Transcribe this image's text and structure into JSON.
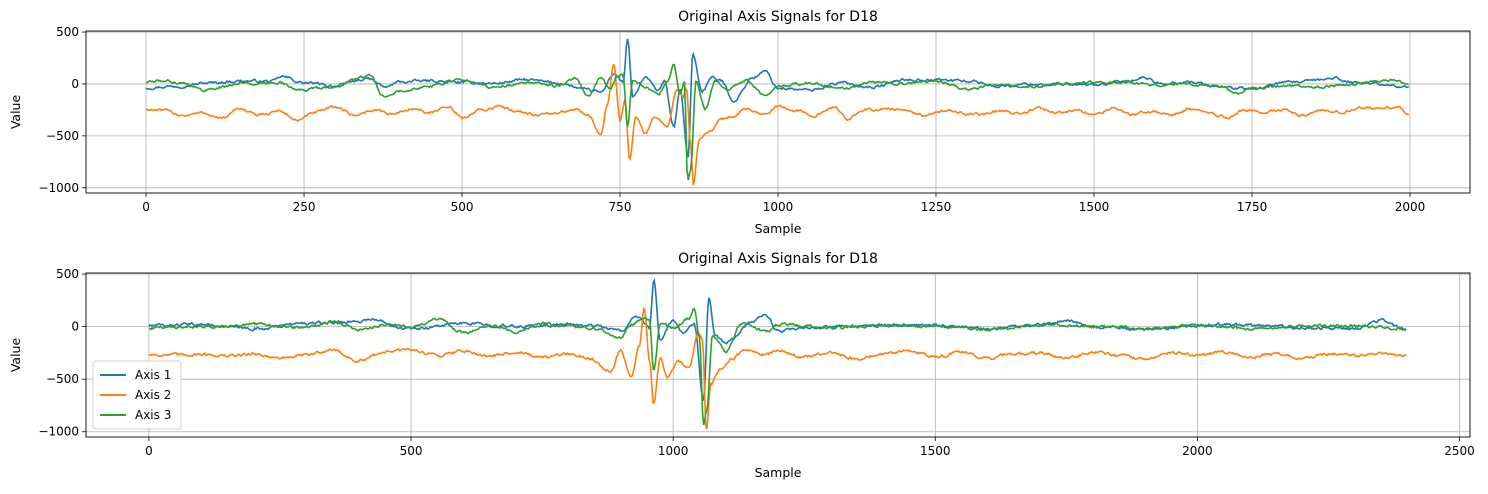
{
  "chart_data": [
    {
      "type": "line",
      "title": "Original Axis Signals for D18",
      "xlabel": "Sample",
      "ylabel": "Value",
      "xlim": [
        -95,
        2095
      ],
      "ylim": [
        -1050,
        510
      ],
      "xticks": [
        0,
        250,
        500,
        750,
        1000,
        1250,
        1500,
        1750,
        2000
      ],
      "yticks": [
        -1000,
        -500,
        0,
        500
      ],
      "grid": true,
      "legend": null,
      "n_samples": 2000,
      "series": [
        {
          "name": "Axis 1",
          "color": "#1f77b4",
          "x": [
            0,
            50,
            100,
            150,
            200,
            215,
            250,
            300,
            350,
            380,
            400,
            450,
            500,
            550,
            600,
            650,
            700,
            720,
            740,
            755,
            762,
            770,
            790,
            810,
            820,
            835,
            845,
            858,
            865,
            880,
            895,
            910,
            930,
            960,
            980,
            1000,
            1050,
            1100,
            1150,
            1200,
            1250,
            1300,
            1350,
            1400,
            1450,
            1500,
            1550,
            1580,
            1600,
            1650,
            1700,
            1750,
            1800,
            1850,
            1880,
            1900,
            1950,
            1999
          ],
          "values": [
            -35,
            -20,
            10,
            30,
            25,
            70,
            10,
            -20,
            50,
            -30,
            20,
            30,
            15,
            5,
            40,
            10,
            -60,
            -80,
            100,
            20,
            440,
            -130,
            60,
            -60,
            30,
            -420,
            -60,
            -700,
            290,
            -70,
            60,
            30,
            -160,
            60,
            120,
            -40,
            -60,
            10,
            -30,
            40,
            40,
            30,
            -20,
            0,
            -10,
            -10,
            20,
            60,
            10,
            20,
            -30,
            -50,
            10,
            30,
            60,
            20,
            5,
            -35
          ]
        },
        {
          "name": "Axis 2",
          "color": "#ff7f0e",
          "x": [
            0,
            30,
            60,
            90,
            120,
            150,
            180,
            210,
            240,
            270,
            300,
            330,
            360,
            390,
            420,
            450,
            480,
            500,
            530,
            560,
            590,
            620,
            650,
            680,
            700,
            720,
            730,
            740,
            750,
            758,
            765,
            775,
            790,
            805,
            825,
            840,
            850,
            855,
            862,
            866,
            875,
            890,
            910,
            930,
            950,
            970,
            980,
            1000,
            1030,
            1060,
            1090,
            1110,
            1140,
            1170,
            1200,
            1230,
            1260,
            1290,
            1320,
            1350,
            1380,
            1410,
            1440,
            1470,
            1500,
            1530,
            1560,
            1590,
            1620,
            1650,
            1680,
            1710,
            1740,
            1770,
            1800,
            1830,
            1860,
            1890,
            1920,
            1950,
            1980,
            1999
          ],
          "values": [
            -245,
            -260,
            -300,
            -280,
            -330,
            -240,
            -300,
            -260,
            -350,
            -270,
            -220,
            -300,
            -250,
            -290,
            -240,
            -270,
            -230,
            -330,
            -250,
            -220,
            -260,
            -300,
            -280,
            -240,
            -310,
            -480,
            -200,
            180,
            -350,
            -150,
            -730,
            -300,
            -480,
            -320,
            -400,
            -60,
            -120,
            -30,
            -600,
            -980,
            -550,
            -460,
            -340,
            -310,
            -240,
            -280,
            -270,
            -220,
            -260,
            -300,
            -230,
            -330,
            -250,
            -240,
            -260,
            -310,
            -250,
            -280,
            -300,
            -260,
            -290,
            -230,
            -280,
            -250,
            -300,
            -230,
            -290,
            -260,
            -300,
            -240,
            -280,
            -320,
            -250,
            -280,
            -240,
            -300,
            -250,
            -270,
            -230,
            -240,
            -220,
            -300
          ]
        },
        {
          "name": "Axis 3",
          "color": "#2ca02c",
          "x": [
            0,
            30,
            60,
            90,
            120,
            150,
            180,
            210,
            240,
            270,
            300,
            330,
            355,
            375,
            400,
            450,
            500,
            550,
            600,
            650,
            680,
            700,
            720,
            735,
            745,
            755,
            762,
            770,
            790,
            810,
            825,
            835,
            845,
            852,
            857,
            862,
            870,
            885,
            900,
            920,
            950,
            980,
            1000,
            1050,
            1100,
            1150,
            1200,
            1250,
            1300,
            1350,
            1400,
            1450,
            1500,
            1550,
            1600,
            1650,
            1700,
            1730,
            1750,
            1800,
            1850,
            1900,
            1950,
            1975,
            1999
          ],
          "values": [
            20,
            30,
            10,
            -60,
            -30,
            10,
            0,
            20,
            -60,
            -40,
            -20,
            40,
            80,
            -120,
            -60,
            -20,
            40,
            -30,
            10,
            -20,
            50,
            -120,
            60,
            -60,
            80,
            80,
            -420,
            40,
            -20,
            -100,
            20,
            180,
            -100,
            30,
            -940,
            -820,
            20,
            -240,
            30,
            -60,
            40,
            -120,
            -20,
            10,
            -40,
            20,
            0,
            30,
            -50,
            -10,
            -20,
            0,
            10,
            20,
            -10,
            0,
            -30,
            -90,
            -40,
            -20,
            -30,
            -10,
            30,
            40,
            10
          ]
        }
      ]
    },
    {
      "type": "line",
      "title": "Original Axis Signals for D18",
      "xlabel": "Sample",
      "ylabel": "Value",
      "xlim": [
        -120,
        2520
      ],
      "ylim": [
        -1050,
        510
      ],
      "xticks": [
        0,
        500,
        1000,
        1500,
        2000,
        2500
      ],
      "yticks": [
        -1000,
        -500,
        0,
        500
      ],
      "grid": true,
      "legend": "bottom-left",
      "n_samples": 2400,
      "series": [
        {
          "name": "Axis 1",
          "color": "#1f77b4",
          "x": [
            0,
            100,
            200,
            300,
            400,
            420,
            500,
            600,
            700,
            800,
            850,
            900,
            930,
            955,
            963,
            975,
            1000,
            1020,
            1040,
            1058,
            1068,
            1080,
            1100,
            1150,
            1175,
            1200,
            1300,
            1400,
            1500,
            1600,
            1700,
            1750,
            1800,
            1900,
            2000,
            2100,
            2200,
            2300,
            2350,
            2399
          ],
          "values": [
            10,
            20,
            -20,
            30,
            50,
            70,
            -20,
            30,
            0,
            20,
            10,
            -40,
            100,
            -20,
            440,
            -130,
            60,
            -70,
            40,
            -700,
            290,
            -80,
            -150,
            40,
            120,
            -40,
            0,
            10,
            10,
            -20,
            20,
            60,
            0,
            -30,
            10,
            20,
            -10,
            -20,
            60,
            -30
          ]
        },
        {
          "name": "Axis 2",
          "color": "#ff7f0e",
          "x": [
            0,
            50,
            100,
            150,
            200,
            250,
            300,
            350,
            400,
            450,
            500,
            550,
            600,
            650,
            700,
            750,
            800,
            840,
            880,
            900,
            920,
            935,
            945,
            955,
            963,
            975,
            990,
            1010,
            1030,
            1048,
            1056,
            1063,
            1072,
            1090,
            1110,
            1140,
            1170,
            1200,
            1250,
            1300,
            1350,
            1400,
            1450,
            1500,
            1550,
            1600,
            1650,
            1700,
            1750,
            1800,
            1850,
            1900,
            1950,
            2000,
            2050,
            2100,
            2150,
            2200,
            2250,
            2300,
            2350,
            2399
          ],
          "values": [
            -265,
            -270,
            -260,
            -280,
            -260,
            -300,
            -270,
            -220,
            -330,
            -240,
            -220,
            -270,
            -230,
            -280,
            -240,
            -300,
            -260,
            -300,
            -420,
            -230,
            -480,
            -200,
            180,
            -330,
            -730,
            -300,
            -480,
            -330,
            -400,
            -60,
            -120,
            -980,
            -550,
            -400,
            -310,
            -220,
            -270,
            -230,
            -290,
            -250,
            -310,
            -260,
            -230,
            -290,
            -240,
            -300,
            -260,
            -250,
            -300,
            -240,
            -280,
            -310,
            -250,
            -270,
            -240,
            -290,
            -250,
            -300,
            -260,
            -280,
            -250,
            -280
          ]
        },
        {
          "name": "Axis 3",
          "color": "#2ca02c",
          "x": [
            0,
            100,
            200,
            300,
            350,
            400,
            450,
            500,
            550,
            600,
            650,
            700,
            750,
            800,
            850,
            900,
            920,
            945,
            955,
            963,
            975,
            1000,
            1030,
            1040,
            1050,
            1058,
            1064,
            1075,
            1100,
            1130,
            1180,
            1200,
            1300,
            1400,
            1500,
            1600,
            1700,
            1800,
            1900,
            2000,
            2100,
            2200,
            2300,
            2399
          ],
          "values": [
            -10,
            0,
            20,
            -10,
            50,
            -30,
            20,
            0,
            70,
            -60,
            10,
            -50,
            30,
            0,
            -20,
            -110,
            20,
            80,
            60,
            -420,
            40,
            -20,
            80,
            180,
            -100,
            -940,
            -800,
            -80,
            -240,
            30,
            -50,
            20,
            -10,
            10,
            0,
            -30,
            20,
            0,
            -20,
            10,
            -20,
            0,
            10,
            -20
          ]
        }
      ]
    }
  ]
}
